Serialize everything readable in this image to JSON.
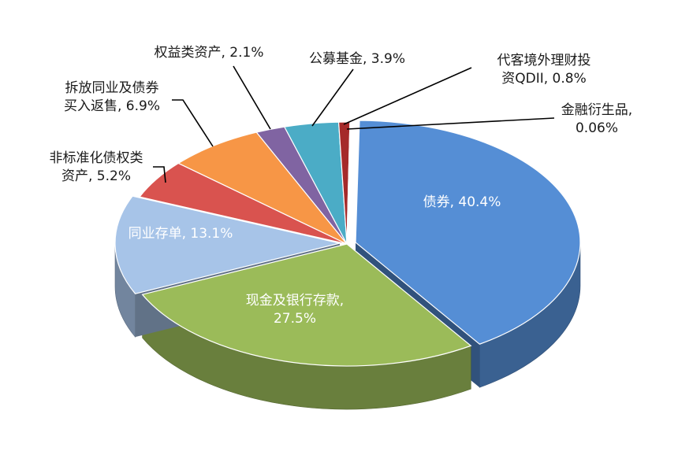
{
  "chart_data": {
    "type": "pie",
    "variant": "3d-exploded",
    "title": "",
    "legend": "none",
    "series": [
      {
        "name": "债券",
        "value": 40.4,
        "color": "#558ED5",
        "label": "债券, 40.4%",
        "label_lines": [
          "债券, 40.4%"
        ],
        "label_placement": "inside"
      },
      {
        "name": "现金及银行存款",
        "value": 27.5,
        "color": "#9BBB59",
        "label": "现金及银行存款, 27.5%",
        "label_lines": [
          "现金及银行存款,",
          "27.5%"
        ],
        "label_placement": "inside"
      },
      {
        "name": "同业存单",
        "value": 13.1,
        "color": "#A7C4E8",
        "label": "同业存单, 13.1%",
        "label_lines": [
          "同业存单, 13.1%"
        ],
        "label_placement": "inside"
      },
      {
        "name": "非标准化债权类资产",
        "value": 5.2,
        "color": "#D9534F",
        "label": "非标准化债权类资产, 5.2%",
        "label_lines": [
          "非标准化债权类",
          "资产, 5.2%"
        ],
        "label_placement": "outside"
      },
      {
        "name": "拆放同业及债券买入返售",
        "value": 6.9,
        "color": "#F79646",
        "label": "拆放同业及债券买入返售, 6.9%",
        "label_lines": [
          "拆放同业及债券",
          "买入返售, 6.9%"
        ],
        "label_placement": "outside"
      },
      {
        "name": "权益类资产",
        "value": 2.1,
        "color": "#8064A2",
        "label": "权益类资产, 2.1%",
        "label_lines": [
          "权益类资产, 2.1%"
        ],
        "label_placement": "outside"
      },
      {
        "name": "公募基金",
        "value": 3.9,
        "color": "#4BACC6",
        "label": "公募基金, 3.9%",
        "label_lines": [
          "公募基金, 3.9%"
        ],
        "label_placement": "outside"
      },
      {
        "name": "代客境外理财投资QDII",
        "value": 0.8,
        "color": "#A52A2A",
        "label": "代客境外理财投资QDII, 0.8%",
        "label_lines": [
          "代客境外理财投",
          "资QDII, 0.8%"
        ],
        "label_placement": "outside"
      },
      {
        "name": "金融衍生品",
        "value": 0.06,
        "color": "#7F7F7F",
        "label": "金融衍生品, 0.06%",
        "label_lines": [
          "金融衍生品,",
          "0.06%"
        ],
        "label_placement": "outside"
      }
    ]
  }
}
